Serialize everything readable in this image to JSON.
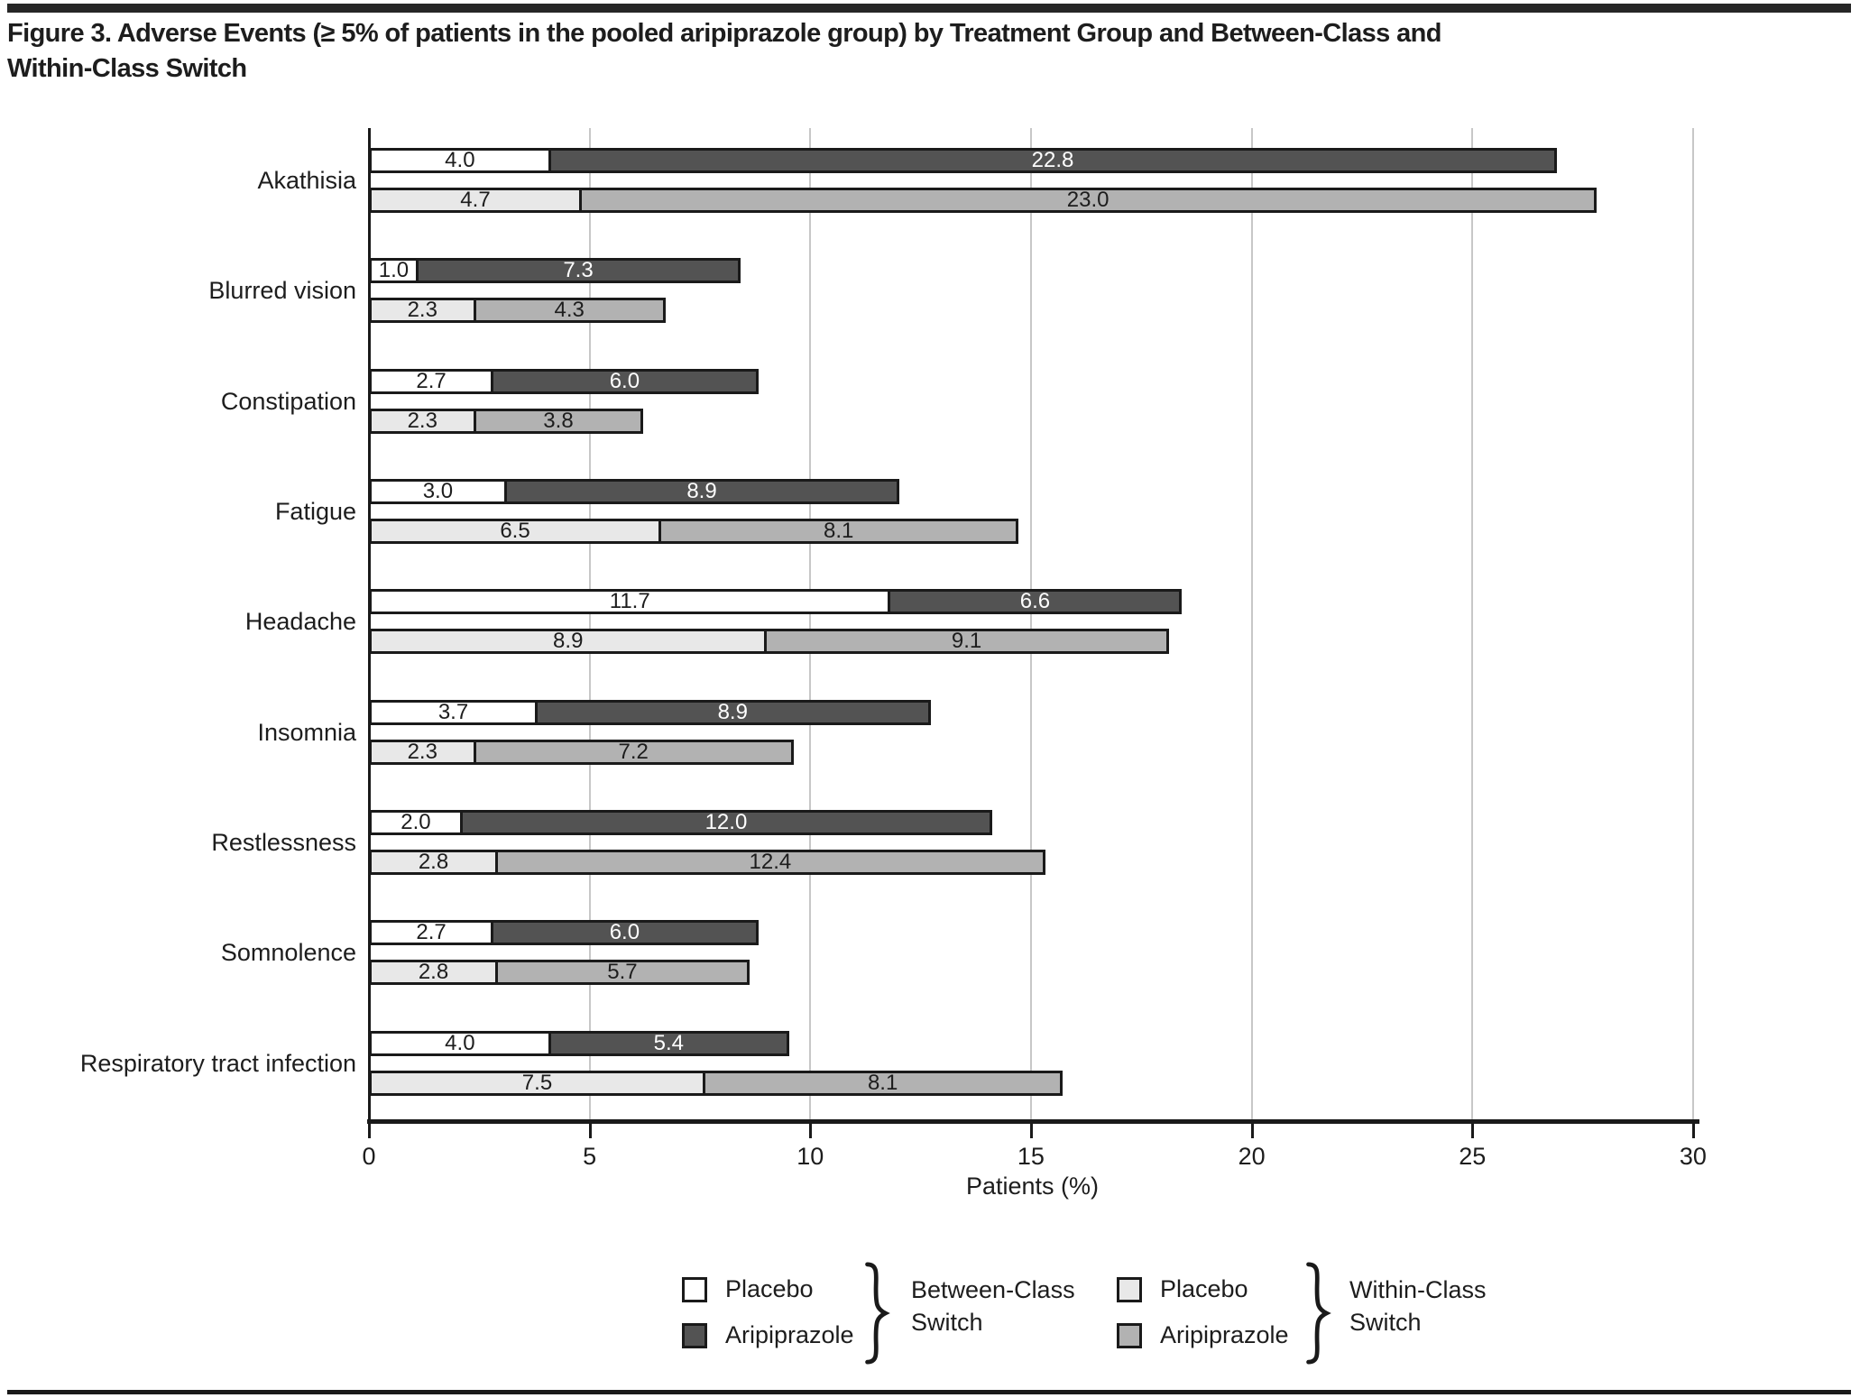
{
  "figure": {
    "title": "Figure 3. Adverse Events (≥ 5% of patients in the pooled aripiprazole group) by Treatment Group and Between-Class and Within-Class Switch",
    "title_line1": "Figure 3. Adverse Events (≥ 5% of patients in the pooled aripiprazole group) by Treatment Group and Between-Class and",
    "title_line2": "Within-Class Switch"
  },
  "chart_data": {
    "type": "bar",
    "orientation": "horizontal-stacked",
    "title": "Figure 3. Adverse Events (≥ 5% of patients in the pooled aripiprazole group) by Treatment Group and Between-Class and Within-Class Switch",
    "xlabel": "Patients (%)",
    "ylabel": "",
    "xlim": [
      0,
      30
    ],
    "xticks": [
      0,
      5,
      10,
      15,
      20,
      25,
      30
    ],
    "grid": true,
    "legend_position": "bottom",
    "categories": [
      "Akathisia",
      "Blurred vision",
      "Constipation",
      "Fatigue",
      "Headache",
      "Insomnia",
      "Restlessness",
      "Somnolence",
      "Respiratory tract infection"
    ],
    "series": [
      {
        "name": "Between-Class Switch — Placebo",
        "color": "#ffffff",
        "label_color": "#1d1d1d",
        "values": [
          4.0,
          1.0,
          2.7,
          3.0,
          11.7,
          3.7,
          2.0,
          2.7,
          4.0
        ]
      },
      {
        "name": "Between-Class Switch — Aripiprazole",
        "color": "#535353",
        "label_color": "#ffffff",
        "values": [
          22.8,
          7.3,
          6.0,
          8.9,
          6.6,
          8.9,
          12.0,
          6.0,
          5.4
        ]
      },
      {
        "name": "Within-Class Switch — Placebo",
        "color": "#e8e8e8",
        "label_color": "#1d1d1d",
        "values": [
          4.7,
          2.3,
          2.3,
          6.5,
          8.9,
          2.3,
          2.8,
          2.8,
          7.5
        ]
      },
      {
        "name": "Within-Class Switch — Aripiprazole",
        "color": "#b2b2b2",
        "label_color": "#1d1d1d",
        "values": [
          23.0,
          4.3,
          3.8,
          8.1,
          9.1,
          7.2,
          12.4,
          5.7,
          8.1
        ]
      }
    ]
  },
  "legend": {
    "groups": [
      {
        "label_line1": "Between-Class",
        "label_line2": "Switch",
        "items": [
          {
            "name": "Placebo",
            "color": "#ffffff"
          },
          {
            "name": "Aripiprazole",
            "color": "#535353"
          }
        ]
      },
      {
        "label_line1": "Within-Class",
        "label_line2": "Switch",
        "items": [
          {
            "name": "Placebo",
            "color": "#e8e8e8"
          },
          {
            "name": "Aripiprazole",
            "color": "#b2b2b2"
          }
        ]
      }
    ]
  },
  "colors": {
    "grid": "#c7c7c7",
    "axis": "#1a1a1a",
    "bar_border": "#1a1a1a",
    "text": "#1d1d1d"
  }
}
